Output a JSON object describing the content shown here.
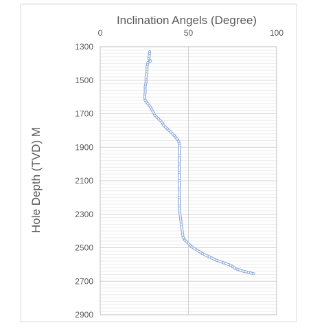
{
  "chart_data": {
    "type": "line",
    "title": "",
    "xlabel": "Inclination Angels (Degree)",
    "ylabel": "Hole Depth (TVD) M",
    "xlim": [
      0,
      100
    ],
    "ylim": [
      1300,
      2900
    ],
    "y_reversed": true,
    "x_axis_position": "top",
    "x_ticks": [
      "0",
      "50",
      "100"
    ],
    "y_ticks": [
      "1300",
      "1500",
      "1700",
      "1900",
      "2100",
      "2300",
      "2500",
      "2700",
      "2900"
    ],
    "grid": true,
    "legend": "none",
    "series": [
      {
        "color": "#8eaadb",
        "line_style": "double",
        "marker": "small-open",
        "points": [
          [
            28,
            1330
          ],
          [
            28,
            1340
          ],
          [
            27.5,
            1370
          ],
          [
            28.5,
            1385
          ],
          [
            27,
            1395
          ],
          [
            26.5,
            1420
          ],
          [
            26.5,
            1450
          ],
          [
            26,
            1480
          ],
          [
            26,
            1510
          ],
          [
            25.5,
            1540
          ],
          [
            25.5,
            1570
          ],
          [
            25.2,
            1600
          ],
          [
            25.5,
            1620
          ],
          [
            27,
            1640
          ],
          [
            28.5,
            1660
          ],
          [
            30,
            1690
          ],
          [
            31,
            1710
          ],
          [
            33,
            1730
          ],
          [
            35,
            1750
          ],
          [
            36,
            1770
          ],
          [
            38,
            1790
          ],
          [
            40,
            1810
          ],
          [
            42,
            1830
          ],
          [
            43.5,
            1850
          ],
          [
            44.5,
            1865
          ],
          [
            45,
            1890
          ],
          [
            45,
            1950
          ],
          [
            44.8,
            2000
          ],
          [
            44.8,
            2050
          ],
          [
            45,
            2100
          ],
          [
            44.8,
            2150
          ],
          [
            44.8,
            2200
          ],
          [
            45,
            2250
          ],
          [
            45,
            2280
          ],
          [
            46,
            2360
          ],
          [
            47,
            2440
          ],
          [
            48,
            2455
          ],
          [
            50,
            2475
          ],
          [
            52,
            2495
          ],
          [
            55,
            2515
          ],
          [
            58,
            2535
          ],
          [
            62,
            2555
          ],
          [
            66,
            2575
          ],
          [
            70,
            2590
          ],
          [
            74,
            2605
          ],
          [
            76,
            2620
          ],
          [
            78,
            2630
          ],
          [
            81,
            2640
          ],
          [
            84,
            2647
          ],
          [
            87,
            2655
          ]
        ]
      }
    ]
  }
}
